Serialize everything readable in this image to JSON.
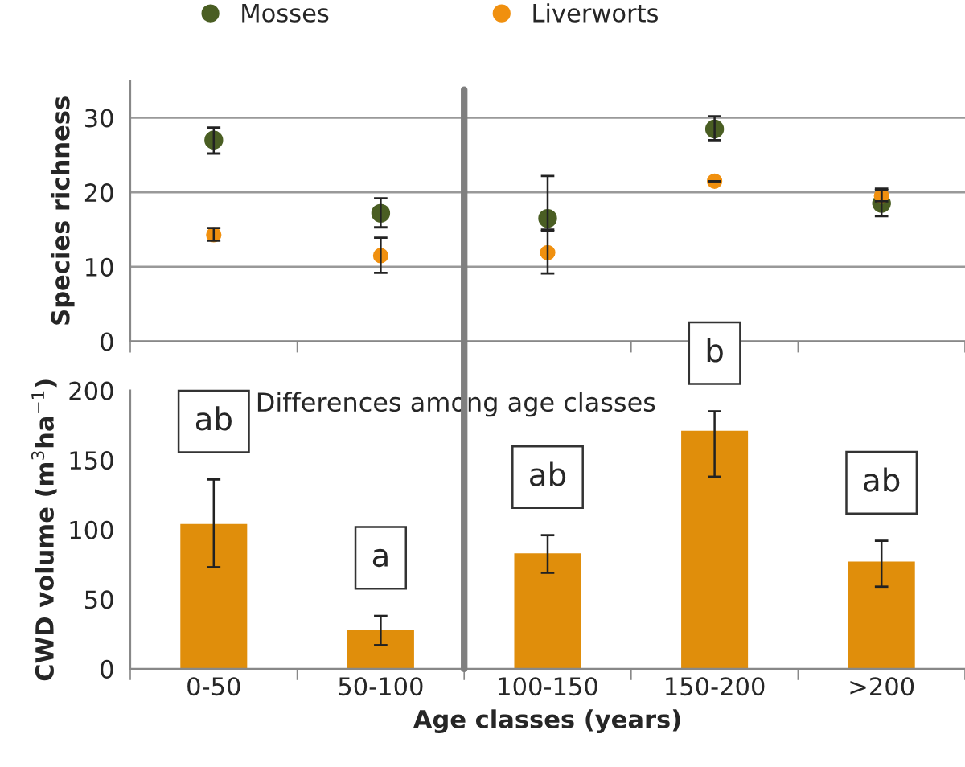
{
  "chart_data": [
    {
      "type": "scatter",
      "ylabel": "Species richness",
      "categories": [
        null,
        null,
        null,
        null,
        null
      ],
      "tick_labels": "y",
      "series": [
        {
          "name": "Mosses",
          "color": "#4a5e23",
          "values": [
            27,
            17.2,
            16.5,
            28.5,
            18.5
          ],
          "errors": [
            [
              25.2,
              28.7
            ],
            [
              15.3,
              19.2
            ],
            [
              15,
              22.2
            ],
            [
              27,
              30.2
            ],
            [
              16.8,
              20.3
            ]
          ]
        },
        {
          "name": "Liverworts",
          "color": "#f0900f",
          "values": [
            14.3,
            11.5,
            11.9,
            21.5,
            19.5
          ],
          "errors": [
            [
              13.5,
              15.2
            ],
            [
              9.2,
              13.9
            ],
            [
              9.1,
              14.8
            ],
            null,
            [
              18.8,
              20.5
            ]
          ]
        }
      ],
      "ylim": [
        0,
        35
      ],
      "yticks": [
        0,
        10,
        20,
        30
      ],
      "grid": "y",
      "legend": "top",
      "marker": "circle"
    },
    {
      "type": "bar",
      "xlabel": "Age classes (years)",
      "ylabel": "CWD volume (m$^{3}$ha$^{−1}$)",
      "categories": [
        "0-50",
        "50-100",
        "100-150",
        "150-200",
        ">200"
      ],
      "values": [
        104,
        28,
        83,
        171,
        77
      ],
      "color": "#e08e0b",
      "errors": [
        [
          73,
          136
        ],
        [
          17,
          38
        ],
        [
          69,
          96
        ],
        [
          138,
          185
        ],
        [
          59,
          92
        ]
      ],
      "ylim": [
        0,
        200
      ],
      "yticks": [
        0,
        50,
        100,
        150,
        200
      ],
      "annotations": [
        "Differences among age classes",
        {
          "text": "ab",
          "x": "0-50",
          "y": 104
        },
        {
          "text": "a",
          "x": "50-100",
          "y": 28
        },
        {
          "text": "ab",
          "x": "100-150",
          "y": 83
        },
        {
          "text": "b",
          "x": "150-200",
          "y": 171
        },
        {
          "text": "ab",
          "x": ">200",
          "y": 77
        }
      ]
    }
  ]
}
